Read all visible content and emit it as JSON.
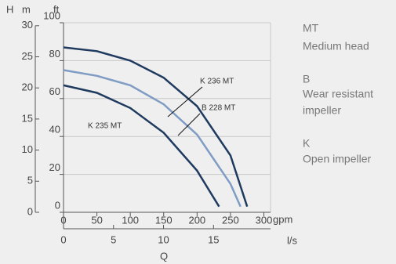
{
  "chart_data": {
    "type": "line",
    "y_label": "H",
    "y2_label": "m",
    "ylim_label": "ft",
    "x_label": "Q",
    "x_unit": "gpm",
    "x2_unit": "l/s",
    "ylim": [
      0,
      100
    ],
    "yticks": [
      0,
      20,
      40,
      60,
      80,
      100
    ],
    "y2lim": [
      0,
      30.48
    ],
    "y2ticks": [
      0,
      5,
      10,
      15,
      20,
      25,
      30
    ],
    "xlim": [
      0,
      310
    ],
    "xticks": [
      0,
      50,
      100,
      150,
      200,
      250,
      300
    ],
    "x2lim": [
      0,
      20.7
    ],
    "x2ticks": [
      0,
      5,
      10,
      15
    ],
    "grid": true,
    "series": [
      {
        "name": "K 236 MT",
        "color": "#1f3a5f",
        "x": [
          0,
          50,
          100,
          150,
          200,
          250,
          275
        ],
        "values": [
          87,
          85,
          80,
          71,
          56,
          30,
          3
        ]
      },
      {
        "name": "B 228 MT",
        "color": "#7f9cc4",
        "x": [
          0,
          50,
          100,
          150,
          200,
          250,
          265
        ],
        "values": [
          75,
          72,
          67,
          57,
          41,
          15,
          3
        ]
      },
      {
        "name": "K 235 MT",
        "color": "#1f3a5f",
        "x": [
          0,
          50,
          100,
          150,
          200,
          233
        ],
        "values": [
          67,
          63,
          55,
          42,
          22,
          3
        ]
      }
    ],
    "notes": [
      [
        "MT",
        "Medium head"
      ],
      [
        "B",
        "Wear resistant",
        "impeller"
      ],
      [
        "K",
        "Open impeller"
      ]
    ]
  }
}
